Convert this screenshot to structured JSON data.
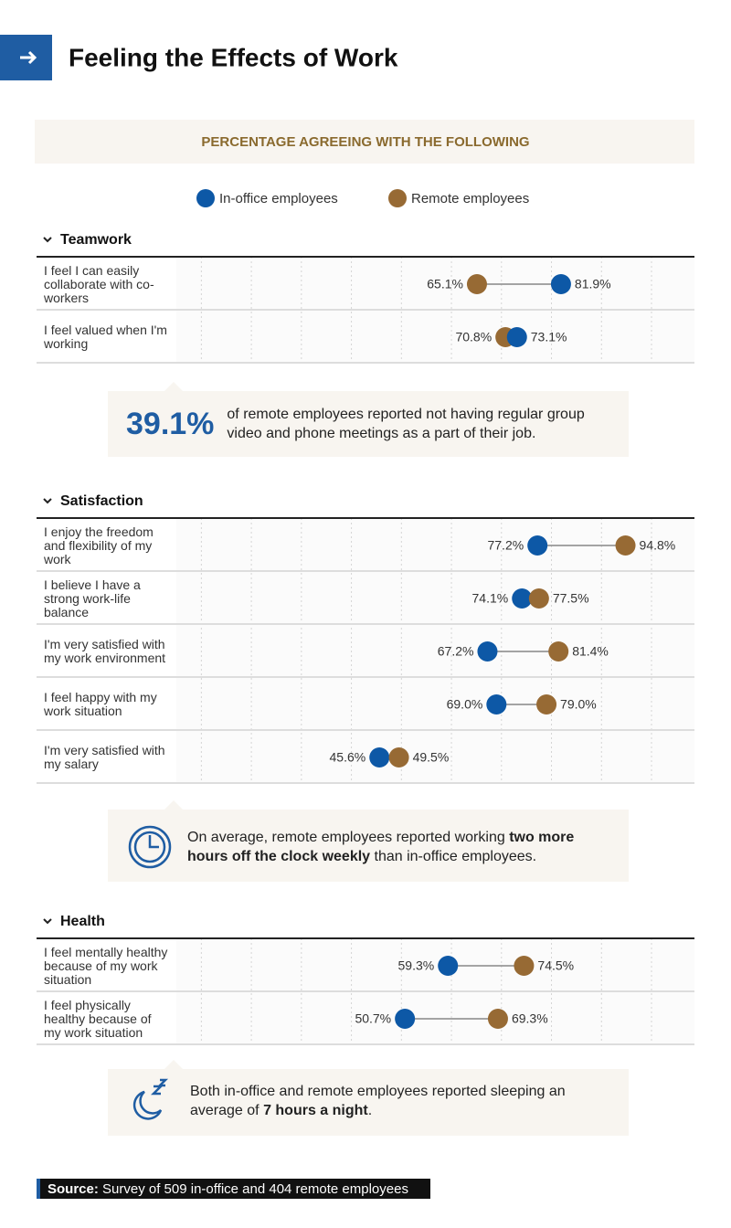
{
  "header": {
    "title": "Feeling the Effects of Work"
  },
  "chart_data": {
    "type": "dumbbell",
    "title": "PERCENTAGE AGREEING WITH THE FOLLOWING",
    "series": [
      {
        "name": "In-office employees",
        "color": "#0d58a6"
      },
      {
        "name": "Remote employees",
        "color": "#976a34"
      }
    ],
    "xlim": [
      5,
      100
    ],
    "xticks": [
      10,
      20,
      30,
      40,
      50,
      60,
      70,
      80,
      90,
      100
    ],
    "grid": true,
    "groups": [
      {
        "title": "Teamwork",
        "categories": [
          "I feel I can easily collaborate with co-workers",
          "I feel valued when I'm working"
        ],
        "series": [
          {
            "values": [
              81.9,
              73.1
            ],
            "value_labels": [
              "81.9%",
              "73.1%"
            ]
          },
          {
            "values": [
              65.1,
              70.8
            ],
            "value_labels": [
              "65.1%",
              "70.8%"
            ]
          }
        ]
      },
      {
        "title": "Satisfaction",
        "categories": [
          "I enjoy the freedom and flexibility of my work",
          "I believe I have a strong work-life balance",
          "I'm very satisfied with my work environment",
          "I feel happy with my work situation",
          "I'm very satisfied with my salary"
        ],
        "series": [
          {
            "values": [
              77.2,
              74.1,
              67.2,
              69.0,
              45.6
            ],
            "value_labels": [
              "77.2%",
              "74.1%",
              "67.2%",
              "69.0%",
              "45.6%"
            ]
          },
          {
            "values": [
              94.8,
              77.5,
              81.4,
              79.0,
              49.5
            ],
            "value_labels": [
              "94.8%",
              "77.5%",
              "81.4%",
              "79.0%",
              "49.5%"
            ]
          }
        ]
      },
      {
        "title": "Health",
        "categories": [
          "I feel mentally healthy because of my work situation",
          "I feel physically healthy because of my work situation"
        ],
        "series": [
          {
            "values": [
              59.3,
              50.7
            ],
            "value_labels": [
              "59.3%",
              "50.7%"
            ]
          },
          {
            "values": [
              74.5,
              69.3
            ],
            "value_labels": [
              "74.5%",
              "69.3%"
            ]
          }
        ]
      }
    ]
  },
  "callouts": [
    {
      "stat": "39.1%",
      "text": "of remote employees reported not having regular group video and phone meetings as a part of their job."
    },
    {
      "text": "On average, remote employees reported working ",
      "bold": "two more hours off the clock weekly",
      "text_end": " than in-office employees."
    },
    {
      "text": "Both in-office and remote employees reported sleeping an average of ",
      "bold": "7 hours a night",
      "text_end": "."
    }
  ],
  "source": {
    "label": "Source:",
    "text": "Survey of 509 in-office and 404 remote employees"
  }
}
